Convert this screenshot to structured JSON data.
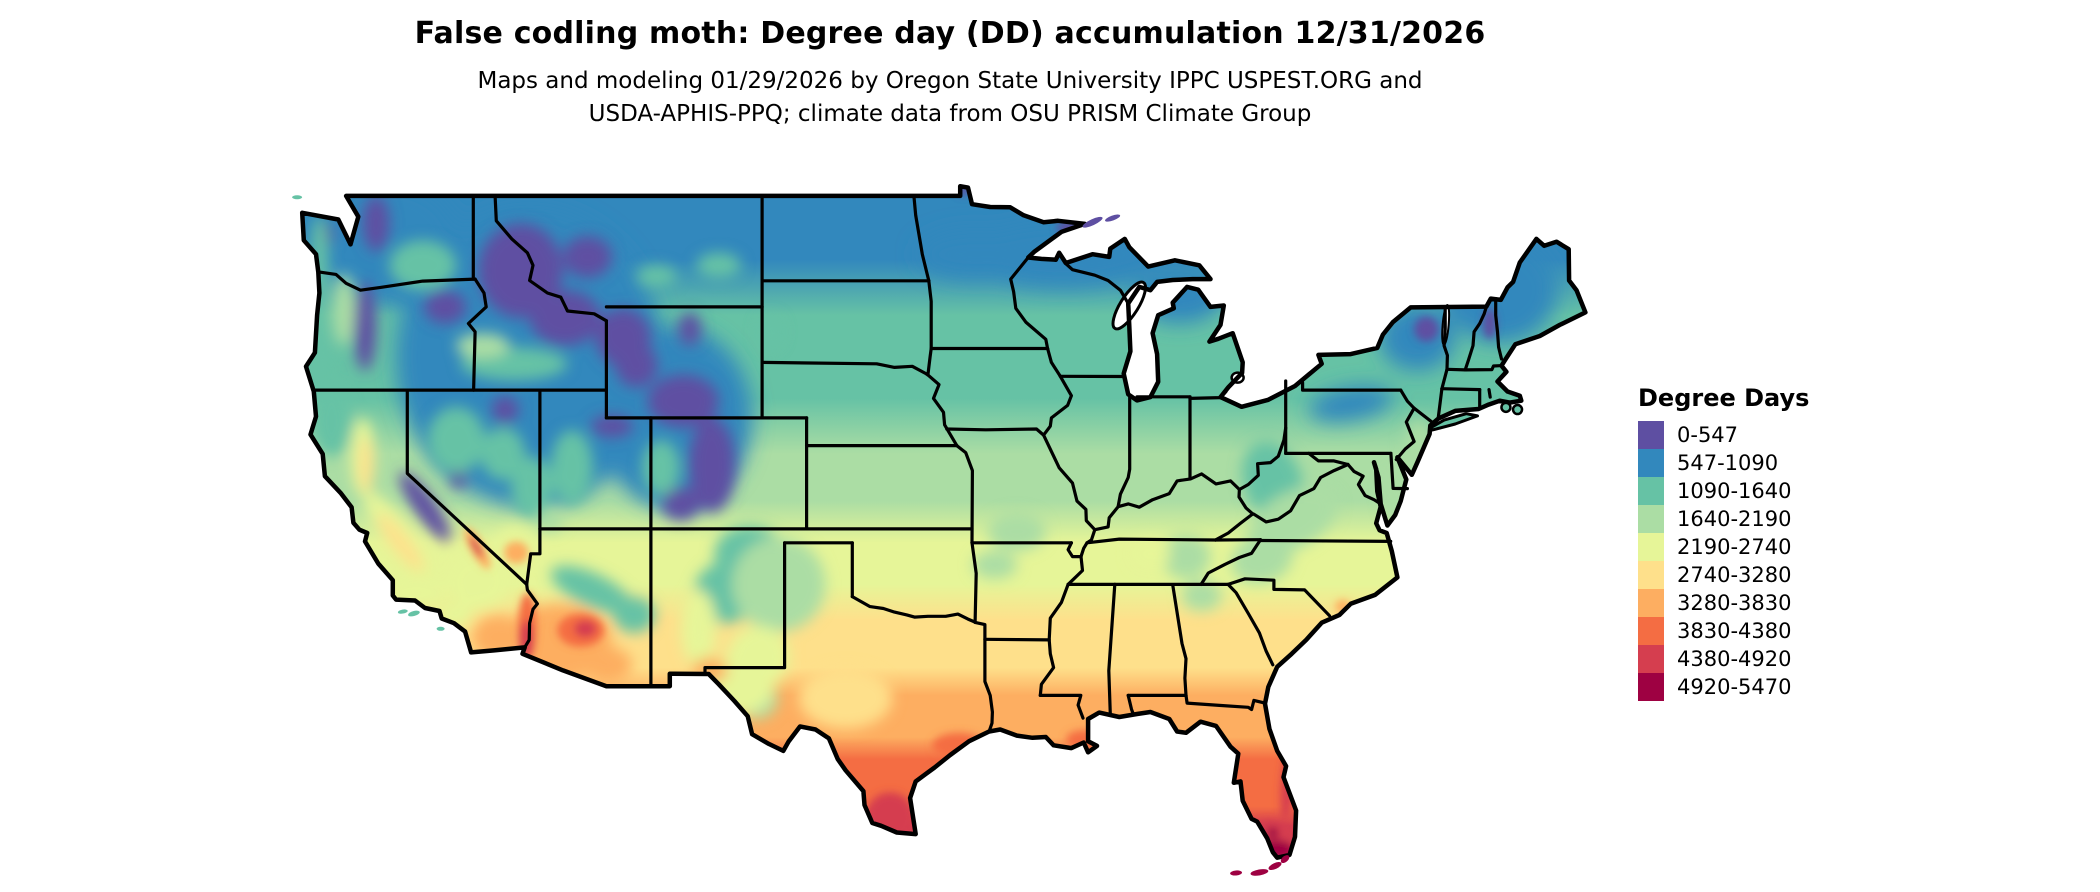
{
  "header": {
    "title": "False codling moth: Degree day (DD) accumulation 12/31/2026",
    "subtitle_line1": "Maps and modeling 01/29/2026 by Oregon State University IPPC USPEST.ORG and",
    "subtitle_line2": "USDA-APHIS-PPQ; climate data from OSU PRISM Climate Group"
  },
  "legend": {
    "title": "Degree Days",
    "items": [
      {
        "label": "0-547",
        "color": "#5e4fa2"
      },
      {
        "label": "547-1090",
        "color": "#3288bd"
      },
      {
        "label": "1090-1640",
        "color": "#66c2a5"
      },
      {
        "label": "1640-2190",
        "color": "#abdda4"
      },
      {
        "label": "2190-2740",
        "color": "#e6f598"
      },
      {
        "label": "2740-3280",
        "color": "#fee08b"
      },
      {
        "label": "3280-3830",
        "color": "#fdae61"
      },
      {
        "label": "3830-4380",
        "color": "#f46d43"
      },
      {
        "label": "4380-4920",
        "color": "#d53e4f"
      },
      {
        "label": "4920-5470",
        "color": "#9e0142"
      }
    ]
  },
  "map": {
    "region": "Conterminous United States",
    "background": "#ffffff",
    "outline_color": "#000000"
  }
}
